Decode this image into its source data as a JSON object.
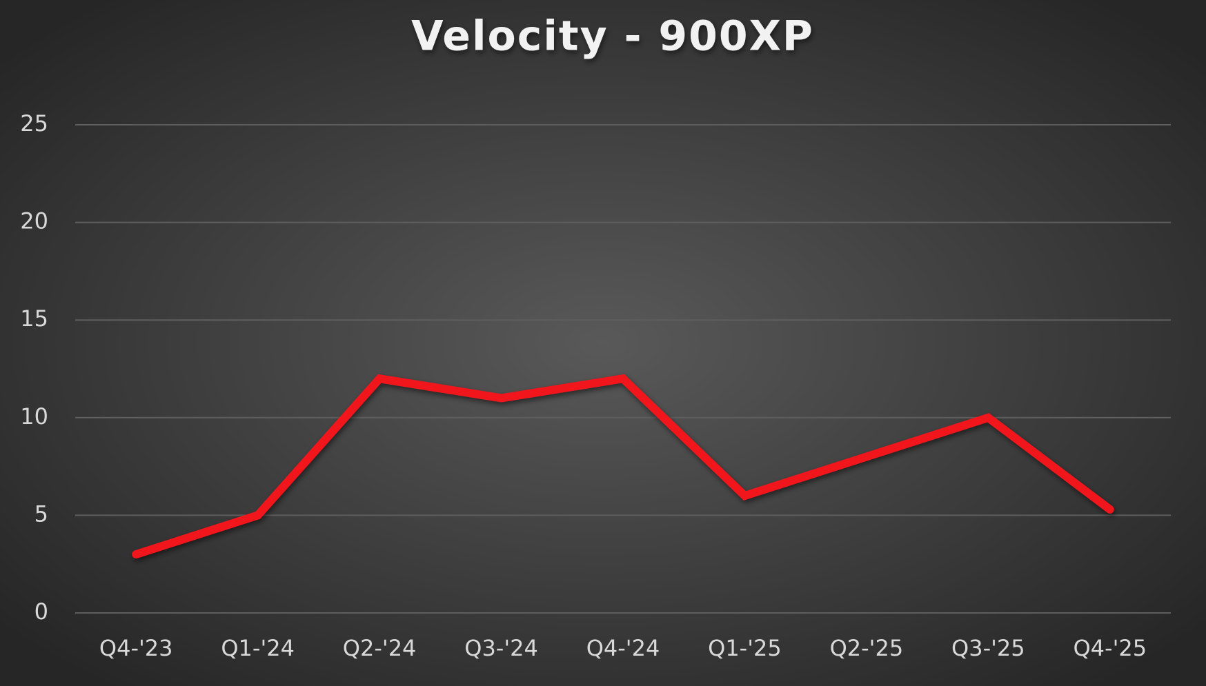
{
  "chart_data": {
    "type": "line",
    "title": "Velocity - 900XP",
    "categories": [
      "Q4-'23",
      "Q1-'24",
      "Q2-'24",
      "Q3-'24",
      "Q4-'24",
      "Q1-'25",
      "Q2-'25",
      "Q3-'25",
      "Q4-'25"
    ],
    "series": [
      {
        "name": "Velocity",
        "color": "#f0141e",
        "values": [
          3,
          5,
          12,
          11,
          12,
          6,
          8,
          10,
          5.3
        ]
      }
    ],
    "ylim": [
      0,
      25
    ],
    "yticks": [
      0,
      5,
      10,
      15,
      20,
      25
    ],
    "grid": true
  }
}
